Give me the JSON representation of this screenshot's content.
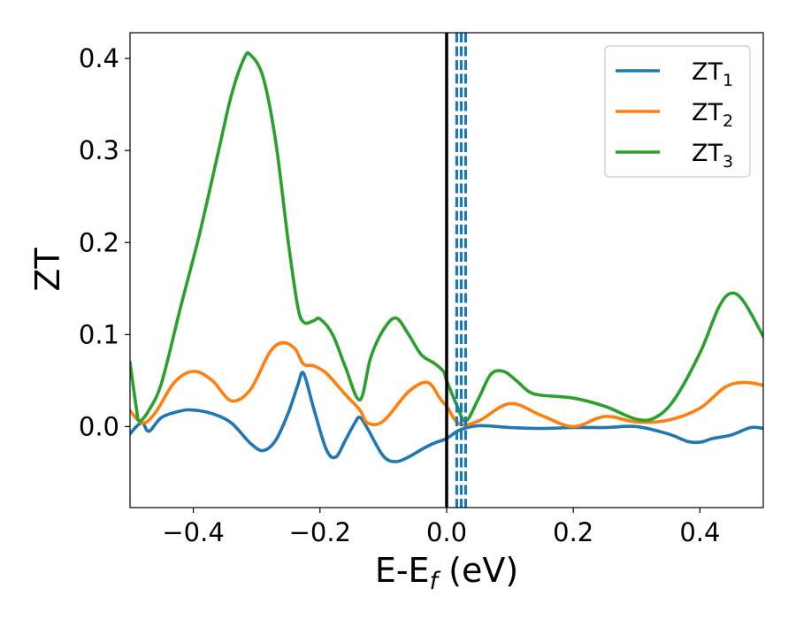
{
  "chart_data": {
    "type": "line",
    "xlabel": "E-E",
    "xlabel_sub": "f",
    "xlabel_unit": " (eV)",
    "ylabel": "ZT",
    "xlim": [
      -0.5,
      0.5
    ],
    "ylim": [
      -0.088,
      0.428
    ],
    "xticks": [
      -0.4,
      -0.2,
      0.0,
      0.2,
      0.4
    ],
    "xtick_labels": [
      "−0.4",
      "−0.2",
      "0.0",
      "0.2",
      "0.4"
    ],
    "yticks": [
      0.0,
      0.1,
      0.2,
      0.3,
      0.4
    ],
    "ytick_labels": [
      "0.0",
      "0.1",
      "0.2",
      "0.3",
      "0.4"
    ],
    "grid": false,
    "legend_position": "top-right",
    "vertical_lines": [
      {
        "x": 0.0,
        "style": "solid",
        "color": "#000000"
      },
      {
        "x": 0.016,
        "style": "dashed",
        "color": "#1f77b4"
      },
      {
        "x": 0.023,
        "style": "dashed",
        "color": "#1f77b4"
      },
      {
        "x": 0.03,
        "style": "dashed",
        "color": "#1f77b4"
      }
    ],
    "series": [
      {
        "name": "ZT",
        "name_sub": "1",
        "color": "#1f77b4",
        "x": [
          -0.5,
          -0.49,
          -0.48,
          -0.47,
          -0.45,
          -0.42,
          -0.4,
          -0.37,
          -0.34,
          -0.31,
          -0.29,
          -0.27,
          -0.25,
          -0.235,
          -0.226,
          -0.21,
          -0.19,
          -0.175,
          -0.16,
          -0.145,
          -0.137,
          -0.125,
          -0.1,
          -0.08,
          -0.06,
          -0.04,
          -0.02,
          0.0,
          0.02,
          0.05,
          0.1,
          0.15,
          0.2,
          0.25,
          0.3,
          0.35,
          0.38,
          0.4,
          0.42,
          0.45,
          0.48,
          0.5
        ],
        "y": [
          -0.008,
          0.0,
          0.004,
          -0.005,
          0.01,
          0.017,
          0.018,
          0.014,
          0.004,
          -0.018,
          -0.026,
          -0.015,
          0.015,
          0.045,
          0.058,
          0.02,
          -0.025,
          -0.033,
          -0.015,
          0.004,
          0.01,
          -0.002,
          -0.032,
          -0.038,
          -0.033,
          -0.025,
          -0.018,
          -0.013,
          -0.004,
          0.001,
          -0.001,
          -0.002,
          -0.001,
          -0.001,
          0.0,
          -0.008,
          -0.016,
          -0.017,
          -0.013,
          -0.009,
          -0.001,
          -0.002
        ]
      },
      {
        "name": "ZT",
        "name_sub": "2",
        "color": "#ff7f0e",
        "x": [
          -0.5,
          -0.48,
          -0.46,
          -0.43,
          -0.4,
          -0.37,
          -0.34,
          -0.31,
          -0.28,
          -0.26,
          -0.24,
          -0.226,
          -0.21,
          -0.19,
          -0.16,
          -0.137,
          -0.125,
          -0.1,
          -0.06,
          -0.03,
          -0.01,
          0.0,
          0.02,
          0.05,
          0.1,
          0.15,
          0.2,
          0.25,
          0.3,
          0.35,
          0.4,
          0.44,
          0.47,
          0.5
        ],
        "y": [
          0.017,
          0.004,
          0.015,
          0.048,
          0.06,
          0.05,
          0.028,
          0.04,
          0.08,
          0.091,
          0.085,
          0.068,
          0.066,
          0.058,
          0.035,
          0.018,
          0.004,
          0.006,
          0.038,
          0.048,
          0.03,
          0.022,
          0.003,
          0.006,
          0.025,
          0.012,
          0.0,
          0.011,
          0.005,
          0.007,
          0.02,
          0.043,
          0.048,
          0.045
        ]
      },
      {
        "name": "ZT",
        "name_sub": "3",
        "color": "#2ca02c",
        "x": [
          -0.5,
          -0.49,
          -0.485,
          -0.47,
          -0.45,
          -0.42,
          -0.39,
          -0.36,
          -0.34,
          -0.32,
          -0.31,
          -0.29,
          -0.27,
          -0.25,
          -0.235,
          -0.225,
          -0.21,
          -0.2,
          -0.18,
          -0.16,
          -0.137,
          -0.12,
          -0.1,
          -0.08,
          -0.06,
          -0.04,
          -0.02,
          -0.005,
          0.0,
          0.015,
          0.03,
          0.05,
          0.07,
          0.09,
          0.11,
          0.13,
          0.15,
          0.2,
          0.25,
          0.3,
          0.33,
          0.36,
          0.4,
          0.43,
          0.45,
          0.47,
          0.5
        ],
        "y": [
          0.07,
          0.02,
          0.006,
          0.018,
          0.048,
          0.13,
          0.21,
          0.3,
          0.36,
          0.4,
          0.404,
          0.38,
          0.31,
          0.2,
          0.13,
          0.113,
          0.115,
          0.117,
          0.1,
          0.065,
          0.029,
          0.075,
          0.105,
          0.118,
          0.1,
          0.078,
          0.069,
          0.06,
          0.05,
          0.025,
          0.006,
          0.03,
          0.057,
          0.06,
          0.05,
          0.038,
          0.034,
          0.031,
          0.022,
          0.008,
          0.01,
          0.03,
          0.08,
          0.13,
          0.145,
          0.135,
          0.098
        ]
      }
    ]
  }
}
